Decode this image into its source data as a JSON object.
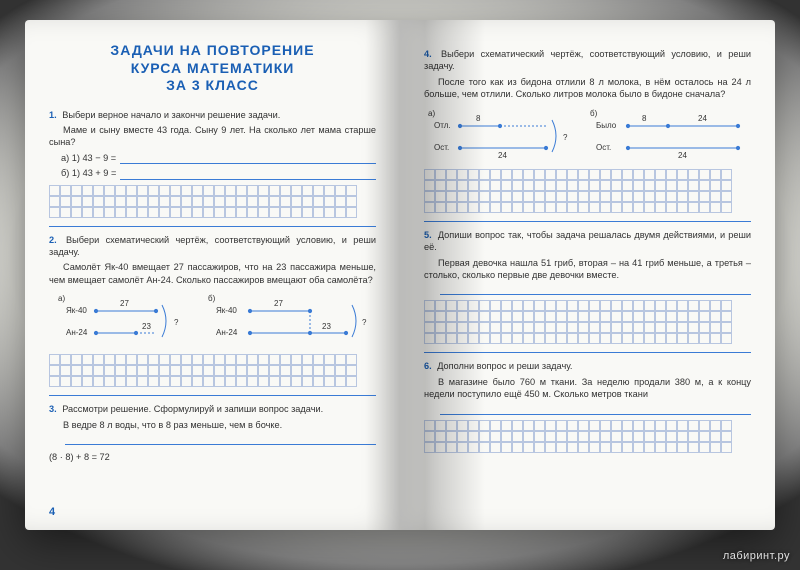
{
  "colors": {
    "accent": "#1a5fb4",
    "grid": "#b8c6e0",
    "line": "#3a7bd5"
  },
  "header": {
    "l1": "ЗАДАЧИ НА ПОВТОРЕНИЕ",
    "l2": "КУРСА МАТЕМАТИКИ",
    "l3": "ЗА 3 КЛАСС"
  },
  "page_num": "4",
  "watermark": "лабиринт.ру",
  "p1": {
    "num": "1.",
    "prompt": "Выбери верное начало и закончи решение задачи.",
    "body": "Маме и сыну вместе 43 года. Сыну 9 лет. На сколько лет мама старше сына?",
    "a": "а) 1) 43 − 9 =",
    "b": "б) 1) 43 + 9 ="
  },
  "p2": {
    "num": "2.",
    "prompt": "Выбери схематический чертёж, соответствующий условию, и реши задачу.",
    "body": "Самолёт Як-40 вмещает 27 пассажиров, что на 23 пассажира меньше, чем вмещает самолёт Ан-24. Сколько пассажиров вмещают оба самолёта?",
    "diag": {
      "la": "а)",
      "lb": "б)",
      "yak": "Як-40",
      "an": "Ан-24",
      "v1": "27",
      "v2": "23"
    }
  },
  "p3": {
    "num": "3.",
    "prompt": "Рассмотри решение. Сформулируй и запиши вопрос задачи.",
    "body": "В ведре 8 л воды, что в 8 раз меньше, чем в бочке.",
    "eq": "(8 · 8) + 8 = 72"
  },
  "p4": {
    "num": "4.",
    "prompt": "Выбери схематический чертёж, соответствующий условию, и реши задачу.",
    "body": "После того как из бидона отлили 8 л молока, в нём осталось на 24 л больше, чем отлили. Сколько литров молока было в бидоне сначала?",
    "diag": {
      "la": "а)",
      "lb": "б)",
      "otl": "Отл.",
      "ost": "Ост.",
      "bylo": "Было",
      "v1": "8",
      "v2": "24"
    }
  },
  "p5": {
    "num": "5.",
    "prompt": "Допиши вопрос так, чтобы задача решалась двумя действиями, и реши её.",
    "body": "Первая девочка нашла 51 гриб, вторая – на 41 гриб меньше, а третья – столько, сколько первые две девочки вместе."
  },
  "p6": {
    "num": "6.",
    "prompt": "Дополни вопрос и реши задачу.",
    "body": "В магазине было 760 м ткани. За неделю продали 380 м, а к концу недели поступило ещё 450 м. Сколько метров ткани"
  }
}
